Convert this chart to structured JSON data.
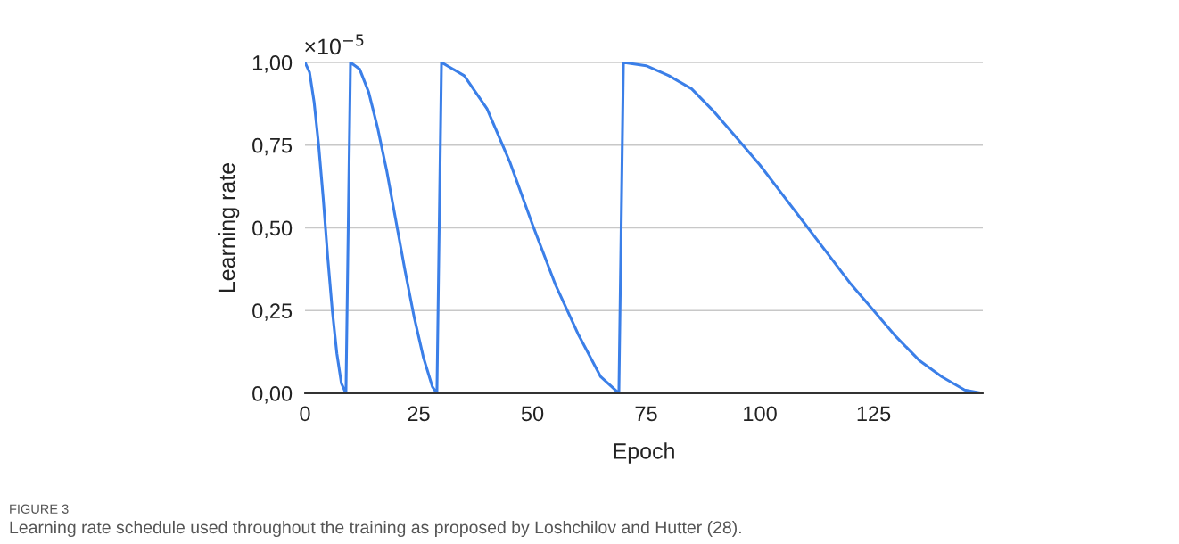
{
  "chart_data": {
    "type": "line",
    "xlabel": "Epoch",
    "ylabel": "Learning rate",
    "annotations": [
      "×10$^{−5}$",
      "FIGURE 3",
      "Learning rate schedule used throughout the training as proposed by Loshchilov and Hutter (28)."
    ],
    "series": [
      {
        "color": "#3b7fe8",
        "x": [
          0,
          1,
          2,
          3,
          4,
          5,
          6,
          7,
          8,
          9,
          10,
          12,
          14,
          16,
          18,
          20,
          22,
          24,
          26,
          28,
          29,
          30,
          35,
          40,
          45,
          50,
          55,
          60,
          65,
          69,
          70,
          75,
          80,
          85,
          90,
          95,
          100,
          105,
          110,
          115,
          120,
          125,
          130,
          135,
          140,
          145,
          149
        ],
        "values": [
          1.0,
          0.97,
          0.88,
          0.75,
          0.59,
          0.41,
          0.25,
          0.12,
          0.03,
          0.0,
          1.0,
          0.98,
          0.91,
          0.8,
          0.67,
          0.52,
          0.37,
          0.23,
          0.11,
          0.02,
          0.0,
          1.0,
          0.96,
          0.86,
          0.7,
          0.51,
          0.33,
          0.18,
          0.05,
          0.0,
          1.0,
          0.99,
          0.96,
          0.92,
          0.85,
          0.77,
          0.69,
          0.6,
          0.51,
          0.42,
          0.33,
          0.25,
          0.17,
          0.1,
          0.05,
          0.01,
          0.0
        ]
      }
    ],
    "xlim": [
      0,
      149
    ],
    "xticks": [
      0,
      25,
      50,
      75,
      100,
      125
    ],
    "ylim": [
      0,
      1.0
    ],
    "yticks": [
      {
        "value": 0,
        "label": "0,00"
      },
      {
        "value": 0.25,
        "label": "0,25"
      },
      {
        "value": 0.5,
        "label": "0,50"
      },
      {
        "value": 0.75,
        "label": "0,75"
      },
      {
        "value": 1.0,
        "label": "1,00"
      }
    ],
    "grid": "y",
    "marker": "none",
    "line_style": "solid"
  }
}
